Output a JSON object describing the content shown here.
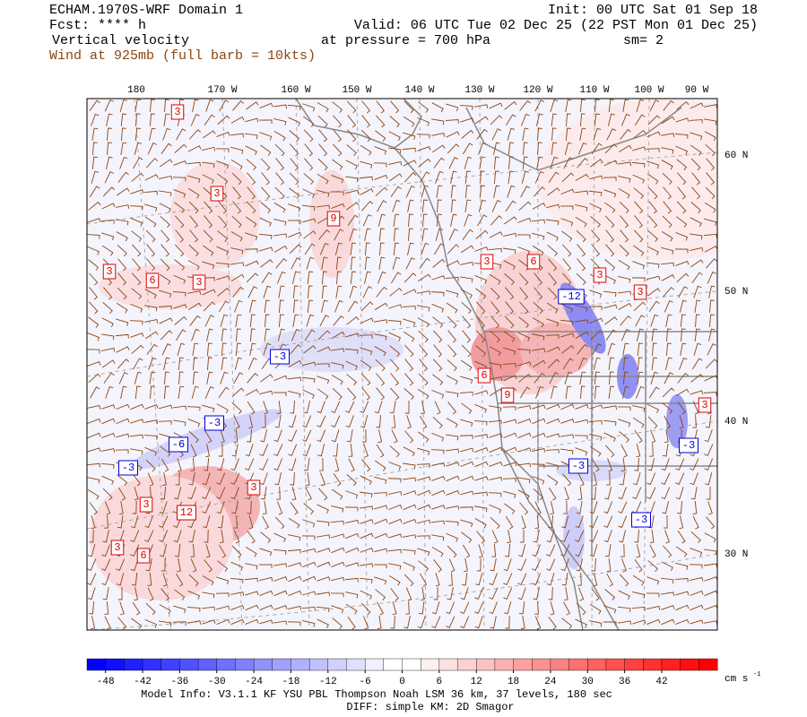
{
  "header": {
    "model": "ECHAM.1970S-WRF Domain 1",
    "forecast": "Fcst: **** h",
    "field": "Vertical velocity",
    "wind": "Wind at 925mb (full barb = 10kts)",
    "init": "Init: 00 UTC Sat 01 Sep 18",
    "valid": "Valid: 06 UTC Tue 02 Dec 25 (22 PST Mon 01 Dec 25)",
    "pressure": "at pressure =  700 hPa",
    "smoothing": "sm= 2"
  },
  "map": {
    "longitudes": [
      "180",
      "170 W",
      "160 W",
      "150 W",
      "140 W",
      "130 W",
      "120 W",
      "110 W",
      "100 W",
      "90 W"
    ],
    "latitudes": [
      "60 N",
      "50 N",
      "40 N",
      "30 N"
    ],
    "contour_labels": {
      "positive": [
        "3",
        "3",
        "9",
        "3",
        "6",
        "3",
        "3",
        "6",
        "3",
        "3",
        "6",
        "9",
        "3",
        "3",
        "3",
        "12",
        "3",
        "6"
      ],
      "negative": [
        "-12",
        "-3",
        "-3",
        "-6",
        "-3",
        "-3",
        "-3",
        "-3"
      ]
    }
  },
  "colorbar": {
    "lim": [
      -51,
      51
    ],
    "ticks": [
      -48,
      -42,
      -36,
      -30,
      -24,
      -18,
      -12,
      -6,
      0,
      6,
      12,
      18,
      24,
      30,
      36,
      42
    ],
    "unit": "cm s",
    "unit_exponent": "-1",
    "colors": [
      "#0000ff",
      "#1010ff",
      "#2020ff",
      "#3030ff",
      "#4040ff",
      "#5050ff",
      "#6060ff",
      "#7070ff",
      "#8080ff",
      "#9090ff",
      "#a0a0ff",
      "#b0b0ff",
      "#c0c0ff",
      "#d0d0ff",
      "#e0e0ff",
      "#f0f0ff",
      "#ffffff",
      "#ffffff",
      "#fff0f0",
      "#ffe0e0",
      "#ffd0d0",
      "#ffc0c0",
      "#ffb0b0",
      "#ffa0a0",
      "#ff9090",
      "#ff8080",
      "#ff7070",
      "#ff6060",
      "#ff5050",
      "#ff4040",
      "#ff3030",
      "#ff2020",
      "#ff1010",
      "#ff0000"
    ]
  },
  "footer": {
    "model_info": "Model Info: V3.1.1    KF     YSU PBL   Thompson     Noah LSM  36 km,    37 levels,   180 sec",
    "diff": "DIFF: simple KM: 2D Smagor"
  }
}
